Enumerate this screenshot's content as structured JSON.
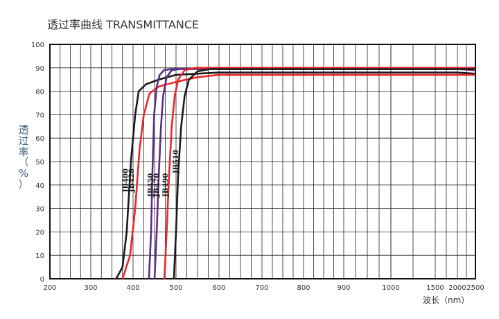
{
  "chart_data": {
    "type": "line",
    "title": "透过率曲线 TRANSMITTANCE",
    "ylabel_chars": [
      "透",
      "过",
      "率",
      "（",
      "%",
      "）"
    ],
    "xlabel": "波长（nm）",
    "x_ticks": [
      200,
      300,
      400,
      500,
      600,
      700,
      800,
      900,
      1000,
      1500,
      2000,
      2500
    ],
    "y_ticks": [
      0,
      10,
      20,
      30,
      40,
      50,
      60,
      70,
      80,
      90,
      100
    ],
    "ylim": [
      0,
      100
    ],
    "grid": true,
    "legend": "curve labels",
    "series": [
      {
        "name": "JB400",
        "color": "#1a1a1a",
        "points": [
          [
            360,
            0
          ],
          [
            375,
            5
          ],
          [
            385,
            20
          ],
          [
            395,
            50
          ],
          [
            405,
            70
          ],
          [
            413,
            80
          ],
          [
            430,
            83
          ],
          [
            460,
            85
          ],
          [
            500,
            87
          ],
          [
            600,
            88
          ],
          [
            700,
            88
          ],
          [
            800,
            88
          ],
          [
            1000,
            88
          ],
          [
            1500,
            88
          ],
          [
            2000,
            88
          ],
          [
            2500,
            87.5
          ]
        ]
      },
      {
        "name": "JB420",
        "color": "#e8262b",
        "points": [
          [
            375,
            0
          ],
          [
            393,
            10
          ],
          [
            405,
            30
          ],
          [
            415,
            55
          ],
          [
            425,
            70
          ],
          [
            438,
            79
          ],
          [
            460,
            82
          ],
          [
            500,
            84
          ],
          [
            550,
            86
          ],
          [
            600,
            87
          ],
          [
            700,
            87
          ],
          [
            1000,
            87
          ],
          [
            1500,
            87
          ],
          [
            2000,
            87
          ],
          [
            2500,
            87
          ]
        ]
      },
      {
        "name": "JB450",
        "color": "#5b2d85",
        "points": [
          [
            437,
            0
          ],
          [
            442,
            20
          ],
          [
            445,
            45
          ],
          [
            449,
            70
          ],
          [
            455,
            82
          ],
          [
            462,
            87
          ],
          [
            472,
            89
          ],
          [
            490,
            89.5
          ],
          [
            600,
            89.5
          ],
          [
            1000,
            89.5
          ],
          [
            1500,
            89.5
          ],
          [
            2000,
            89.5
          ],
          [
            2500,
            89
          ]
        ]
      },
      {
        "name": "JB470",
        "color": "#5b2d85",
        "points": [
          [
            450,
            0
          ],
          [
            455,
            20
          ],
          [
            460,
            45
          ],
          [
            465,
            65
          ],
          [
            470,
            78
          ],
          [
            478,
            86
          ],
          [
            490,
            89
          ],
          [
            510,
            89.5
          ],
          [
            600,
            89.5
          ],
          [
            1000,
            89.5
          ],
          [
            1500,
            89.5
          ],
          [
            2000,
            89.5
          ],
          [
            2500,
            89
          ]
        ]
      },
      {
        "name": "JB490",
        "color": "#e8262b",
        "points": [
          [
            473,
            0
          ],
          [
            478,
            20
          ],
          [
            484,
            45
          ],
          [
            490,
            65
          ],
          [
            497,
            78
          ],
          [
            505,
            85
          ],
          [
            520,
            89
          ],
          [
            545,
            90
          ],
          [
            600,
            90
          ],
          [
            1000,
            90
          ],
          [
            1500,
            90
          ],
          [
            2000,
            90
          ],
          [
            2500,
            90
          ]
        ]
      },
      {
        "name": "JB510",
        "color": "#1a1a1a",
        "points": [
          [
            495,
            0
          ],
          [
            500,
            20
          ],
          [
            505,
            45
          ],
          [
            512,
            65
          ],
          [
            520,
            78
          ],
          [
            530,
            85
          ],
          [
            550,
            88.5
          ],
          [
            580,
            89.5
          ],
          [
            600,
            89.5
          ],
          [
            1000,
            89.5
          ],
          [
            1500,
            89.5
          ],
          [
            2000,
            89.5
          ],
          [
            2500,
            89.5
          ]
        ]
      }
    ],
    "labels": [
      "JB400",
      "JB420",
      "JB450",
      "JB470",
      "JB490",
      "JB510"
    ]
  }
}
